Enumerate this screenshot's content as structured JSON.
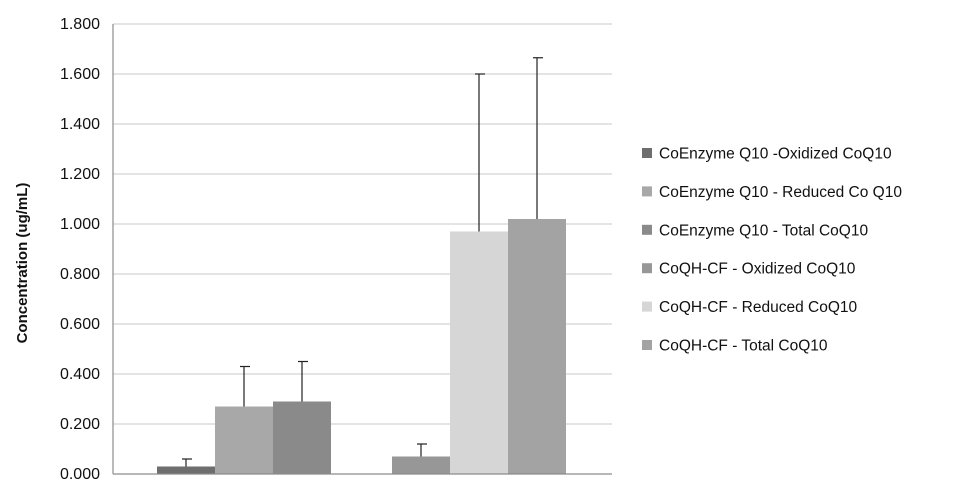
{
  "chart_data": {
    "type": "bar",
    "title": "",
    "xlabel": "",
    "ylabel": "Concentration (ug/mL)",
    "ylim": [
      0,
      1.8
    ],
    "yticks": [
      "0.000",
      "0.200",
      "0.400",
      "0.600",
      "0.800",
      "1.000",
      "1.200",
      "1.400",
      "1.600",
      "1.800"
    ],
    "grid": true,
    "legend_position": "right",
    "groups": [
      {
        "series": [
          {
            "name": "CoEnzyme Q10 -Oxidized CoQ10",
            "value": 0.03,
            "error": 0.03,
            "color": "#6e6e6e"
          },
          {
            "name": "CoEnzyme Q10 - Reduced Co Q10",
            "value": 0.27,
            "error": 0.16,
            "color": "#a8a8a8"
          },
          {
            "name": "CoEnzyme Q10 - Total CoQ10",
            "value": 0.29,
            "error": 0.16,
            "color": "#8a8a8a"
          }
        ]
      },
      {
        "series": [
          {
            "name": "CoQH-CF - Oxidized CoQ10",
            "value": 0.07,
            "error": 0.05,
            "color": "#979797"
          },
          {
            "name": "CoQH-CF - Reduced CoQ10",
            "value": 0.97,
            "error": 0.63,
            "color": "#d6d6d6"
          },
          {
            "name": "CoQH-CF - Total CoQ10",
            "value": 1.02,
            "error": 0.645,
            "color": "#a3a3a3"
          }
        ]
      }
    ]
  }
}
